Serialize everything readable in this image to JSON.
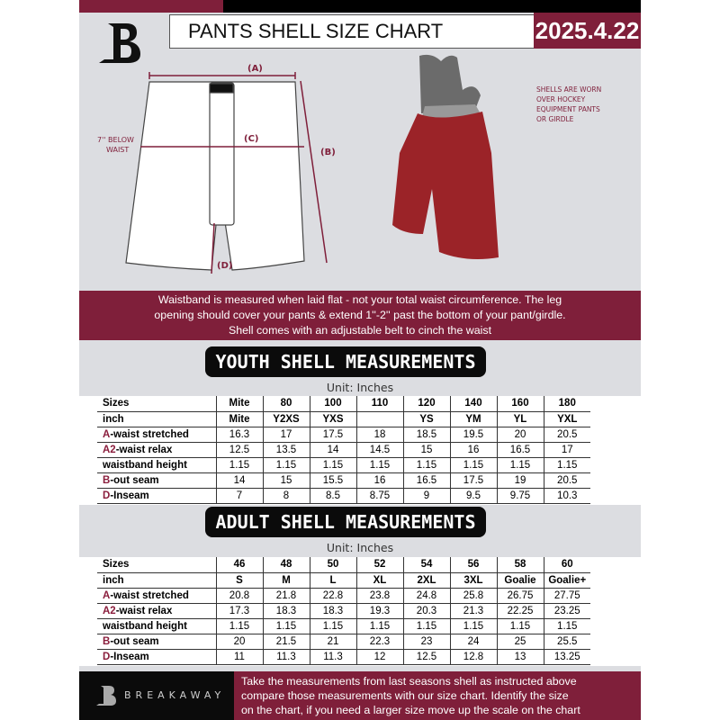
{
  "header": {
    "title": "PANTS SHELL SIZE CHART",
    "date": "2025.4.22",
    "brand_logo": "B"
  },
  "diagram": {
    "label_a": "(A)",
    "label_b": "(B)",
    "label_c": "(C)",
    "label_d": "(D)",
    "below_waist": [
      "7'' BELOW",
      "WAIST"
    ],
    "shell_note": [
      "SHELLS ARE WORN",
      "OVER HOCKEY",
      "EQUIPMENT PANTS",
      "OR GIRDLE"
    ]
  },
  "note": [
    "Waistband is measured when laid flat - not your total waist circumference. The leg",
    "opening should cover your pants & extend 1''-2'' past the bottom of your pant/girdle.",
    "Shell comes with an adjustable belt to cinch the waist"
  ],
  "youth": {
    "title": "YOUTH SHELL MEASUREMENTS",
    "unit": "Unit: Inches",
    "rows": [
      {
        "prefix": "",
        "label": "Sizes",
        "values": [
          "Mite",
          "80",
          "100",
          "110",
          "120",
          "140",
          "160",
          "180"
        ]
      },
      {
        "prefix": "",
        "label": "inch",
        "values": [
          "Mite",
          "Y2XS",
          "YXS",
          "",
          "YS",
          "YM",
          "YL",
          "YXL"
        ]
      },
      {
        "prefix": "A",
        "label": "-waist stretched",
        "values": [
          "16.3",
          "17",
          "17.5",
          "18",
          "18.5",
          "19.5",
          "20",
          "20.5"
        ]
      },
      {
        "prefix": "A2",
        "label": "-waist relax",
        "values": [
          "12.5",
          "13.5",
          "14",
          "14.5",
          "15",
          "16",
          "16.5",
          "17"
        ]
      },
      {
        "prefix": "",
        "label": "waistband height",
        "values": [
          "1.15",
          "1.15",
          "1.15",
          "1.15",
          "1.15",
          "1.15",
          "1.15",
          "1.15"
        ]
      },
      {
        "prefix": "B",
        "label": "-out seam",
        "values": [
          "14",
          "15",
          "15.5",
          "16",
          "16.5",
          "17.5",
          "19",
          "20.5"
        ]
      },
      {
        "prefix": "D",
        "label": "-Inseam",
        "values": [
          "7",
          "8",
          "8.5",
          "8.75",
          "9",
          "9.5",
          "9.75",
          "10.3"
        ]
      }
    ]
  },
  "adult": {
    "title": "ADULT SHELL MEASUREMENTS",
    "unit": "Unit: Inches",
    "rows": [
      {
        "prefix": "",
        "label": "Sizes",
        "values": [
          "46",
          "48",
          "50",
          "52",
          "54",
          "56",
          "58",
          "60"
        ]
      },
      {
        "prefix": "",
        "label": "inch",
        "values": [
          "S",
          "M",
          "L",
          "XL",
          "2XL",
          "3XL",
          "Goalie",
          "Goalie+"
        ]
      },
      {
        "prefix": "A",
        "label": "-waist stretched",
        "values": [
          "20.8",
          "21.8",
          "22.8",
          "23.8",
          "24.8",
          "25.8",
          "26.75",
          "27.75"
        ]
      },
      {
        "prefix": "A2",
        "label": "-waist relax",
        "values": [
          "17.3",
          "18.3",
          "18.3",
          "19.3",
          "20.3",
          "21.3",
          "22.25",
          "23.25"
        ]
      },
      {
        "prefix": "",
        "label": "waistband height",
        "values": [
          "1.15",
          "1.15",
          "1.15",
          "1.15",
          "1.15",
          "1.15",
          "1.15",
          "1.15"
        ]
      },
      {
        "prefix": "B",
        "label": "-out seam",
        "values": [
          "20",
          "21.5",
          "21",
          "22.3",
          "23",
          "24",
          "25",
          "25.5"
        ]
      },
      {
        "prefix": "D",
        "label": "-Inseam",
        "values": [
          "11",
          "11.3",
          "11.3",
          "12",
          "12.5",
          "12.8",
          "13",
          "13.25"
        ]
      }
    ]
  },
  "footer": {
    "brand": "BREAKAWAY",
    "text": [
      "Take the measurements from last seasons shell as instructed above",
      "compare those measurements  with our size chart. Identify the size",
      "on the chart, if you need a larger size move up the scale on the chart"
    ]
  },
  "colors": {
    "accent": "#7f1f3a",
    "dark": "#0b0b0b",
    "background": "#dcdde1"
  }
}
